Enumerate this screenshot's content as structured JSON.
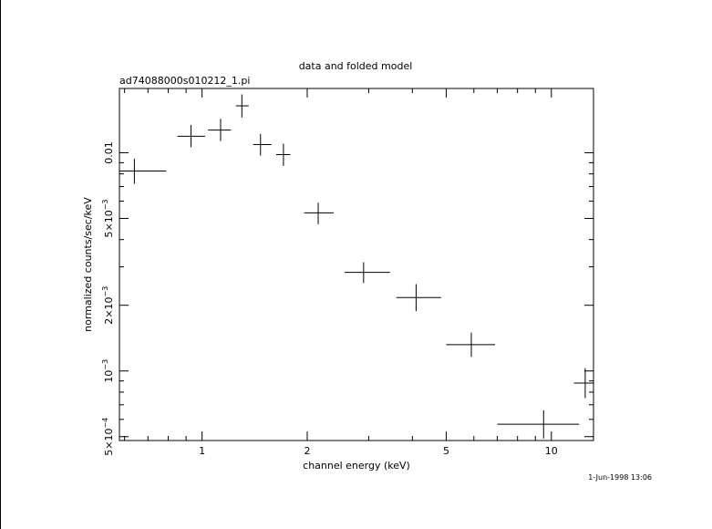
{
  "colors": {
    "background": "#ffffff",
    "ink": "#000000"
  },
  "chart_data": {
    "type": "scatter",
    "title": "data and folded model",
    "subtitle": "ad74088000s010212_1.pi",
    "xlabel": "channel energy (keV)",
    "ylabel": "normalized counts/sec/keV",
    "x_scale": "log",
    "y_scale": "log",
    "xlim": [
      0.58,
      13.2
    ],
    "ylim": [
      0.00048,
      0.0197
    ],
    "x_ticks": [
      {
        "value": 1,
        "label": "1"
      },
      {
        "value": 2,
        "label": "2"
      },
      {
        "value": 5,
        "label": "5"
      },
      {
        "value": 10,
        "label": "10"
      }
    ],
    "y_ticks": [
      {
        "value": 0.0005,
        "mantissa": "5",
        "exponent": "−4"
      },
      {
        "value": 0.001,
        "mantissa": "",
        "exponent": "−3"
      },
      {
        "value": 0.002,
        "mantissa": "2",
        "exponent": "−3"
      },
      {
        "value": 0.005,
        "mantissa": "5",
        "exponent": "−3"
      },
      {
        "value": 0.01,
        "plain": "0.01"
      }
    ],
    "grid": false,
    "footer_timestamp": "1-Jun-1998 13:06",
    "series": [
      {
        "points": [
          {
            "x": 0.64,
            "y": 0.00825,
            "xlo": 0.58,
            "xhi": 0.79,
            "ylo": 0.0072,
            "yhi": 0.0094
          },
          {
            "x": 0.93,
            "y": 0.0119,
            "xlo": 0.85,
            "xhi": 1.02,
            "ylo": 0.0106,
            "yhi": 0.0134
          },
          {
            "x": 1.13,
            "y": 0.0127,
            "xlo": 1.04,
            "xhi": 1.21,
            "ylo": 0.0113,
            "yhi": 0.0143
          },
          {
            "x": 1.3,
            "y": 0.0164,
            "xlo": 1.25,
            "xhi": 1.36,
            "ylo": 0.0145,
            "yhi": 0.0185
          },
          {
            "x": 1.47,
            "y": 0.0109,
            "xlo": 1.4,
            "xhi": 1.58,
            "ylo": 0.0097,
            "yhi": 0.0122
          },
          {
            "x": 1.71,
            "y": 0.0098,
            "xlo": 1.63,
            "xhi": 1.79,
            "ylo": 0.0087,
            "yhi": 0.011
          },
          {
            "x": 2.15,
            "y": 0.0053,
            "xlo": 1.96,
            "xhi": 2.38,
            "ylo": 0.0047,
            "yhi": 0.0059
          },
          {
            "x": 2.9,
            "y": 0.00283,
            "xlo": 2.56,
            "xhi": 3.45,
            "ylo": 0.00253,
            "yhi": 0.00315
          },
          {
            "x": 4.1,
            "y": 0.00217,
            "xlo": 3.6,
            "xhi": 4.83,
            "ylo": 0.00188,
            "yhi": 0.0025
          },
          {
            "x": 5.9,
            "y": 0.00132,
            "xlo": 5.0,
            "xhi": 6.9,
            "ylo": 0.00116,
            "yhi": 0.0015
          },
          {
            "x": 9.5,
            "y": 0.00057,
            "xlo": 7.0,
            "xhi": 12.0,
            "ylo": 0.00049,
            "yhi": 0.00066
          },
          {
            "x": 12.5,
            "y": 0.00088,
            "xlo": 11.6,
            "xhi": 13.2,
            "ylo": 0.00075,
            "yhi": 0.00103
          }
        ]
      }
    ]
  }
}
